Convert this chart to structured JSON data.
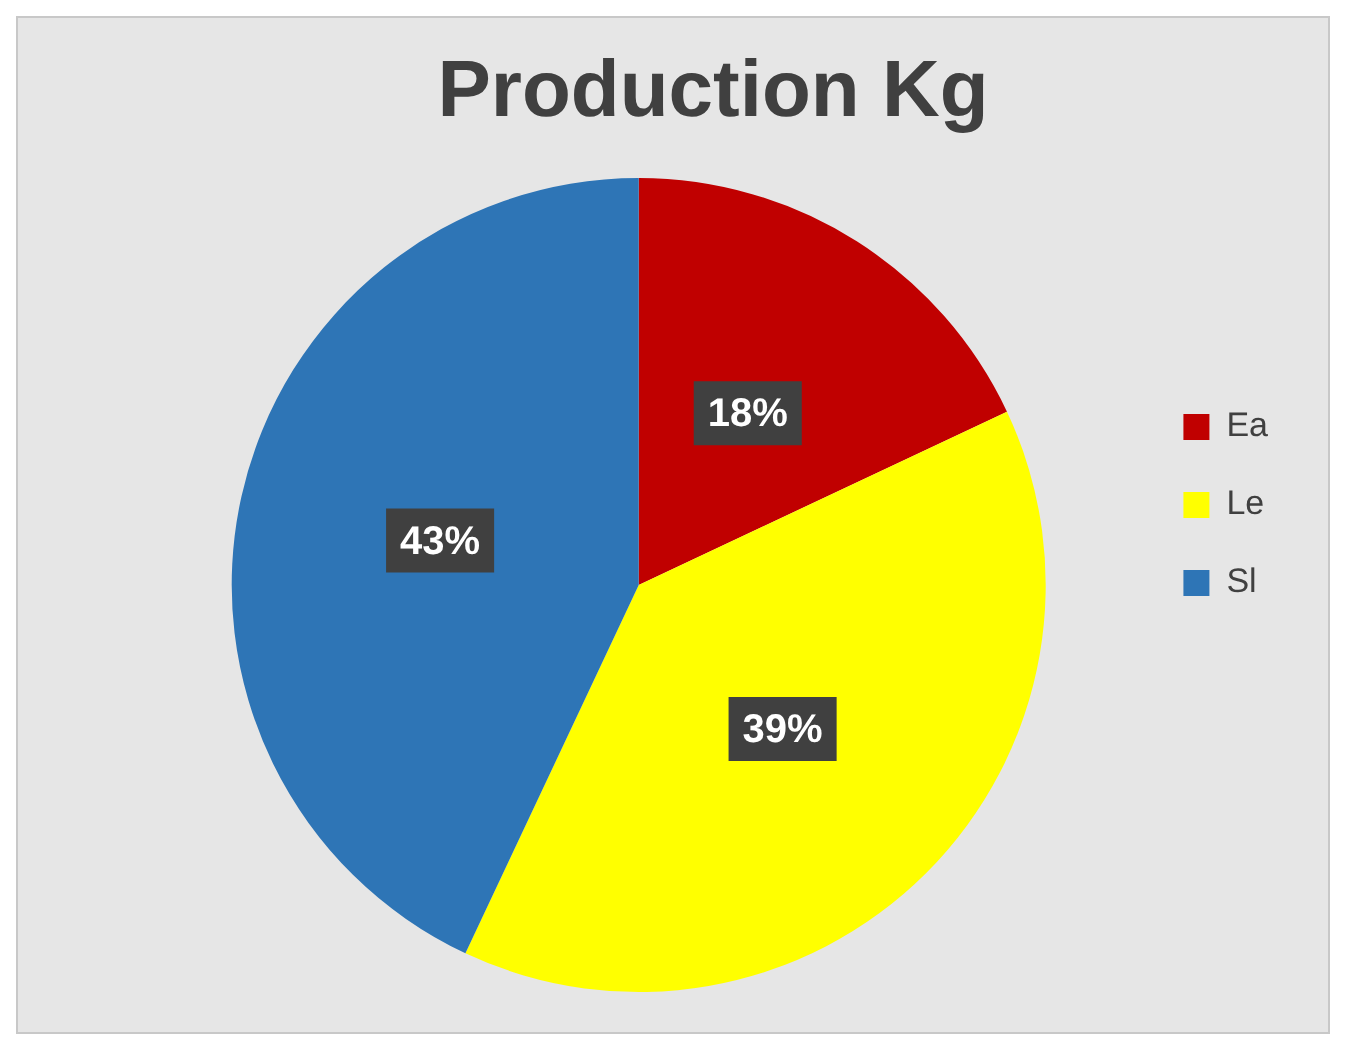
{
  "chart_data": {
    "type": "pie",
    "title": "Production Kg",
    "categories": [
      "Ea",
      "Le",
      "Sl"
    ],
    "values": [
      18,
      39,
      43
    ],
    "colors": [
      "#c00000",
      "#ffff00",
      "#2e75b6"
    ],
    "value_labels": [
      "18%",
      "39%",
      "43%"
    ],
    "legend": "right"
  }
}
